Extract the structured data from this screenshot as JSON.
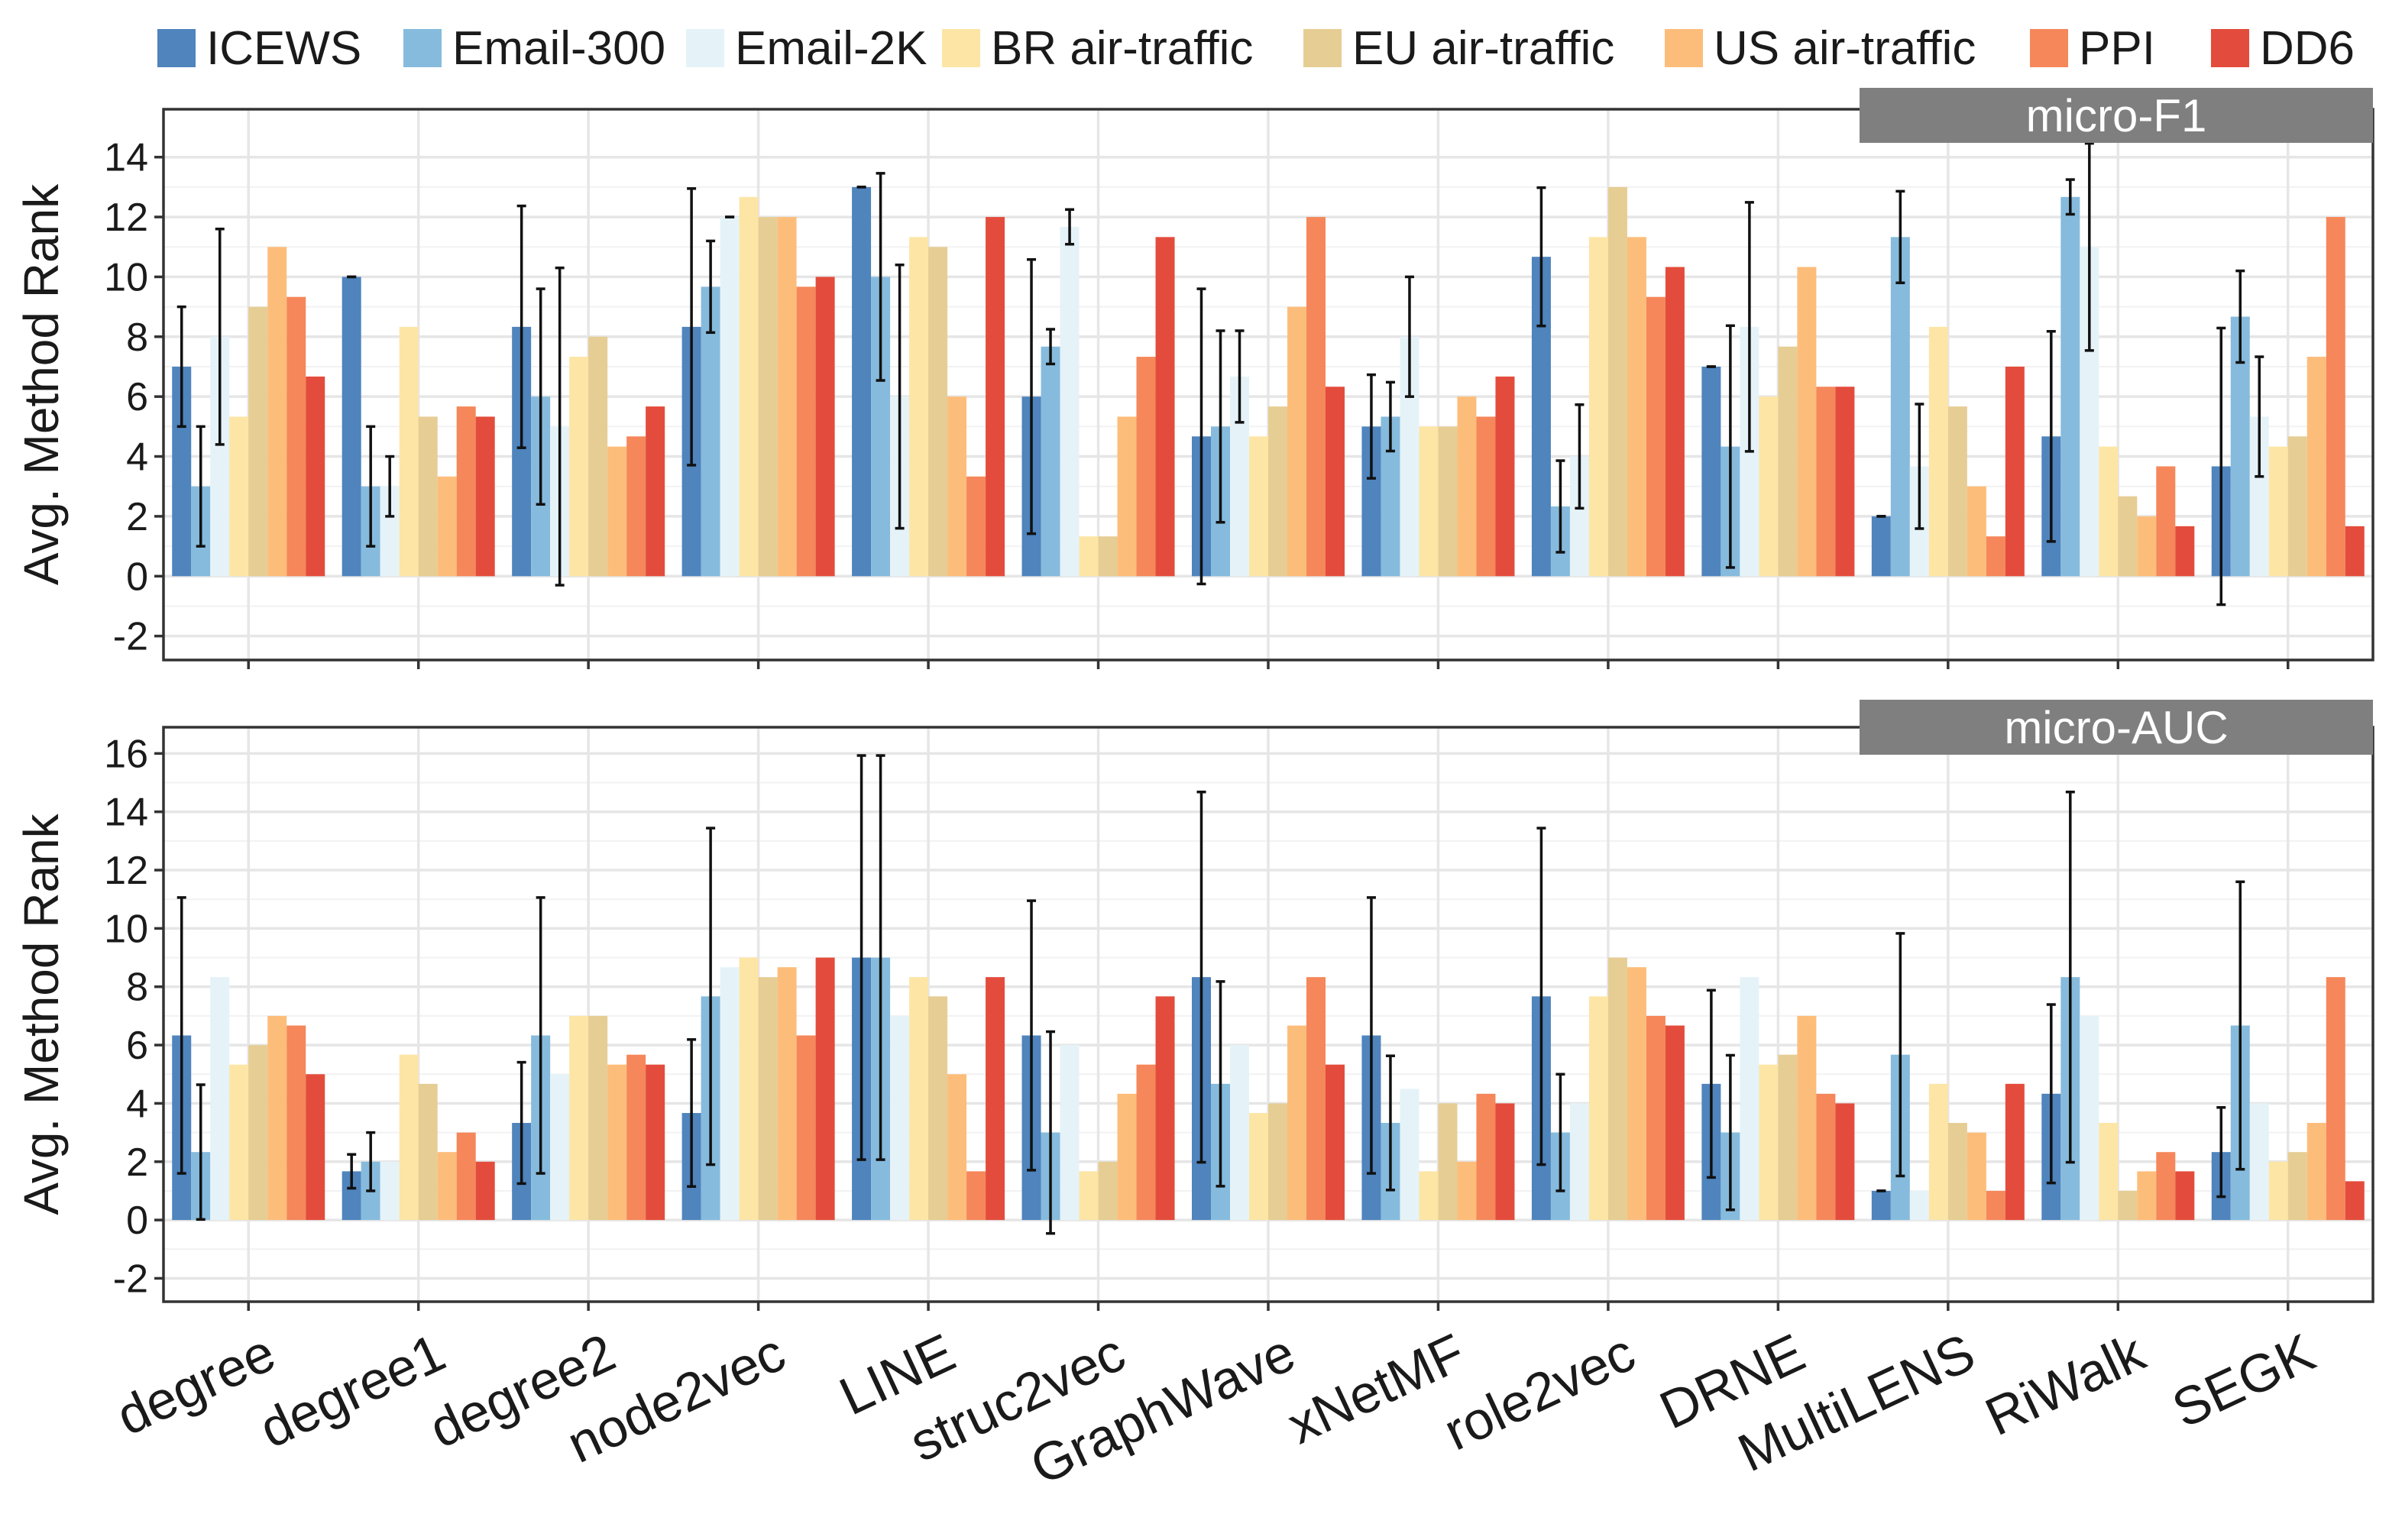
{
  "legend": {
    "items": [
      {
        "label": "ICEWS",
        "color": "#4f84bd"
      },
      {
        "label": "Email-300",
        "color": "#86bbdd"
      },
      {
        "label": "Email-2K",
        "color": "#e5f3f9"
      },
      {
        "label": "BR air-traffic",
        "color": "#fde5a6"
      },
      {
        "label": "EU air-traffic",
        "color": "#e6cd94"
      },
      {
        "label": "US air-traffic",
        "color": "#fdbd7a"
      },
      {
        "label": "PPI",
        "color": "#f5875a"
      },
      {
        "label": "DD6",
        "color": "#e34c3c"
      }
    ]
  },
  "chart_data": [
    {
      "type": "bar",
      "panel": "micro-F1",
      "ylabel": "Avg. Method Rank",
      "ylim": [
        -2.8,
        15.6
      ],
      "yticks": [
        -2,
        0,
        2,
        4,
        6,
        8,
        10,
        12,
        14
      ],
      "grid": true,
      "error_bars": true,
      "categories": [
        "degree",
        "degree1",
        "degree2",
        "node2vec",
        "LINE",
        "struc2vec",
        "GraphWave",
        "xNetMF",
        "role2vec",
        "DRNE",
        "MultiLENS",
        "RiWalk",
        "SEGK"
      ],
      "series": [
        {
          "name": "ICEWS",
          "values": [
            7.0,
            10.0,
            8.33,
            8.33,
            13.0,
            6.0,
            4.67,
            5.0,
            10.67,
            7.0,
            2.0,
            4.67,
            3.67
          ],
          "errors": [
            2.0,
            0.0,
            4.04,
            4.62,
            0.0,
            4.58,
            4.93,
            1.73,
            2.31,
            0.0,
            0.0,
            3.51,
            4.62
          ]
        },
        {
          "name": "Email-300",
          "values": [
            3.0,
            3.0,
            6.0,
            9.67,
            10.0,
            7.67,
            5.0,
            5.33,
            2.33,
            4.33,
            11.33,
            12.67,
            8.67
          ],
          "errors": [
            2.0,
            2.0,
            3.6,
            1.53,
            3.46,
            0.58,
            3.2,
            1.15,
            1.53,
            4.04,
            1.53,
            0.58,
            1.53
          ]
        },
        {
          "name": "Email-2K",
          "values": [
            8.0,
            3.0,
            5.0,
            12.0,
            6.0,
            11.67,
            6.67,
            8.0,
            4.0,
            8.33,
            3.67,
            11.0,
            5.33
          ],
          "errors": [
            3.6,
            1.0,
            5.3,
            0.0,
            4.4,
            0.58,
            1.53,
            2.0,
            1.73,
            4.16,
            2.08,
            3.46,
            2.0
          ]
        },
        {
          "name": "BR air-traffic",
          "values": [
            5.33,
            8.33,
            7.33,
            12.67,
            11.33,
            1.33,
            4.67,
            5.0,
            11.33,
            6.0,
            8.33,
            4.33,
            4.33
          ]
        },
        {
          "name": "EU air-traffic",
          "values": [
            9.0,
            5.33,
            8.0,
            12.0,
            11.0,
            1.33,
            5.67,
            5.0,
            13.0,
            7.67,
            5.67,
            2.67,
            4.67
          ]
        },
        {
          "name": "US air-traffic",
          "values": [
            11.0,
            3.33,
            4.33,
            12.0,
            6.0,
            5.33,
            9.0,
            6.0,
            11.33,
            10.33,
            3.0,
            2.0,
            7.33
          ]
        },
        {
          "name": "PPI",
          "values": [
            9.33,
            5.67,
            4.67,
            9.67,
            3.33,
            7.33,
            12.0,
            5.33,
            9.33,
            6.33,
            1.33,
            3.67,
            12.0
          ]
        },
        {
          "name": "DD6",
          "values": [
            6.67,
            5.33,
            5.67,
            10.0,
            12.0,
            11.33,
            6.33,
            6.67,
            10.33,
            6.33,
            7.0,
            1.67,
            1.67
          ]
        }
      ]
    },
    {
      "type": "bar",
      "panel": "micro-AUC",
      "ylabel": "Avg. Method Rank",
      "ylim": [
        -2.8,
        16.9
      ],
      "yticks": [
        -2,
        0,
        2,
        4,
        6,
        8,
        10,
        12,
        14,
        16
      ],
      "grid": true,
      "error_bars": true,
      "categories": [
        "degree",
        "degree1",
        "degree2",
        "node2vec",
        "LINE",
        "struc2vec",
        "GraphWave",
        "xNetMF",
        "role2vec",
        "DRNE",
        "MultiLENS",
        "RiWalk",
        "SEGK"
      ],
      "series": [
        {
          "name": "ICEWS",
          "values": [
            6.33,
            1.67,
            3.33,
            3.67,
            9.0,
            6.33,
            8.33,
            6.33,
            7.67,
            4.67,
            1.0,
            4.33,
            2.33
          ],
          "errors": [
            4.73,
            0.58,
            2.08,
            2.52,
            6.93,
            4.62,
            6.35,
            4.73,
            5.77,
            3.21,
            0.0,
            3.06,
            1.53
          ]
        },
        {
          "name": "Email-300",
          "values": [
            2.33,
            2.0,
            6.33,
            7.67,
            9.0,
            3.0,
            4.67,
            3.33,
            3.0,
            3.0,
            5.67,
            8.33,
            6.67
          ],
          "errors": [
            2.31,
            1.0,
            4.73,
            5.77,
            6.93,
            3.46,
            3.51,
            2.3,
            2.0,
            2.65,
            4.16,
            6.35,
            4.93
          ]
        },
        {
          "name": "Email-2K",
          "values": [
            8.33,
            2.0,
            5.0,
            8.67,
            7.0,
            6.0,
            6.0,
            4.5,
            4.0,
            8.33,
            1.0,
            7.0,
            4.0
          ]
        },
        {
          "name": "BR air-traffic",
          "values": [
            5.33,
            5.67,
            7.0,
            9.0,
            8.33,
            1.67,
            3.67,
            1.67,
            7.67,
            5.33,
            4.67,
            3.33,
            2.0
          ]
        },
        {
          "name": "EU air-traffic",
          "values": [
            6.0,
            4.67,
            7.0,
            8.33,
            7.67,
            2.0,
            4.0,
            4.0,
            9.0,
            5.67,
            3.33,
            1.0,
            2.33
          ]
        },
        {
          "name": "US air-traffic",
          "values": [
            7.0,
            2.33,
            5.33,
            8.67,
            5.0,
            4.33,
            6.67,
            2.0,
            8.67,
            7.0,
            3.0,
            1.67,
            3.33
          ]
        },
        {
          "name": "PPI",
          "values": [
            6.67,
            3.0,
            5.67,
            6.33,
            1.67,
            5.33,
            8.33,
            4.33,
            7.0,
            4.33,
            1.0,
            2.33,
            8.33
          ]
        },
        {
          "name": "DD6",
          "values": [
            5.0,
            2.0,
            5.33,
            9.0,
            8.33,
            7.67,
            5.33,
            4.0,
            6.67,
            4.0,
            4.67,
            1.67,
            1.33
          ]
        }
      ]
    }
  ]
}
